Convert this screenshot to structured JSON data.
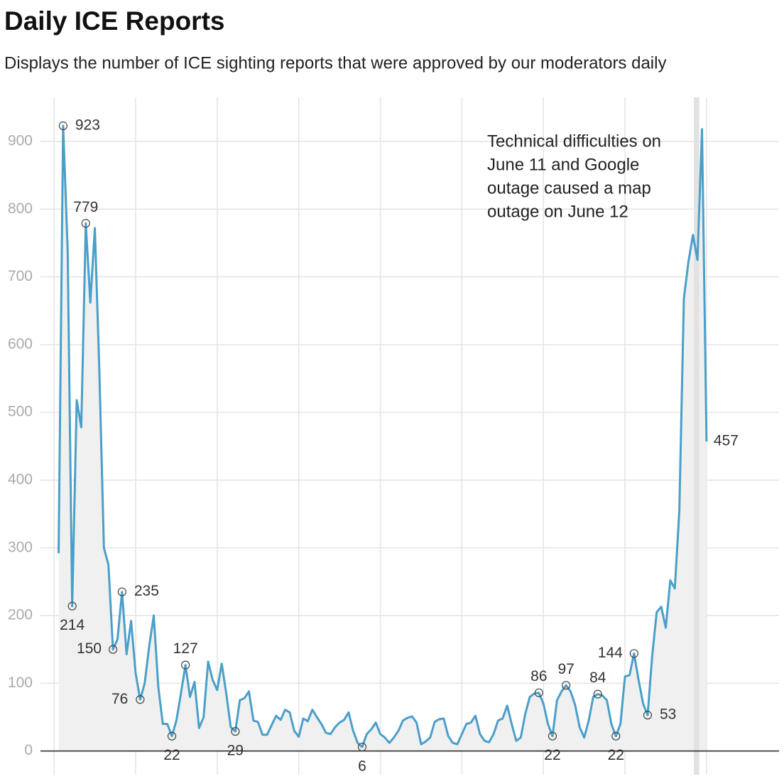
{
  "chart_data": {
    "type": "line",
    "title": "Daily ICE Reports",
    "subtitle": "Displays the number of ICE sighting reports that were approved by our moderators daily",
    "annotation": [
      "Technical difficulties on",
      "June 11 and Google",
      "outage caused a map",
      "outage on June 12"
    ],
    "series": [
      {
        "color": "#4a9fc9",
        "values": [
          292,
          923,
          740,
          214,
          518,
          478,
          779,
          662,
          772,
          560,
          300,
          275,
          150,
          165,
          235,
          143,
          192,
          115,
          76,
          100,
          155,
          200,
          95,
          40,
          40,
          22,
          45,
          85,
          127,
          80,
          102,
          34,
          50,
          132,
          105,
          90,
          129,
          85,
          35,
          29,
          75,
          78,
          88,
          45,
          43,
          24,
          24,
          38,
          52,
          46,
          61,
          57,
          30,
          21,
          48,
          44,
          61,
          50,
          40,
          27,
          25,
          35,
          42,
          46,
          57,
          30,
          12,
          6,
          25,
          32,
          42,
          25,
          20,
          12,
          20,
          30,
          45,
          49,
          51,
          42,
          10,
          14,
          20,
          43,
          47,
          48,
          22,
          12,
          10,
          25,
          40,
          42,
          52,
          25,
          15,
          13,
          25,
          45,
          48,
          67,
          40,
          15,
          20,
          55,
          80,
          85,
          86,
          70,
          40,
          22,
          75,
          88,
          97,
          88,
          68,
          35,
          20,
          45,
          80,
          84,
          82,
          75,
          40,
          22,
          40,
          110,
          112,
          144,
          105,
          70,
          53,
          140,
          205,
          213,
          182,
          252,
          240,
          355,
          668,
          722,
          762,
          725,
          918,
          457
        ]
      }
    ],
    "labeled_points": [
      1,
      3,
      6,
      12,
      14,
      18,
      25,
      28,
      39,
      67,
      106,
      109,
      112,
      119,
      123,
      127,
      130,
      143
    ],
    "highlight_x": [
      140.2,
      141.4
    ],
    "area_color": "#f0f0f0",
    "xlim": [
      -4,
      159
    ],
    "xticks": [
      -1,
      17,
      35,
      53,
      71,
      89,
      107,
      125,
      143
    ],
    "ylim": [
      -35,
      965
    ],
    "yticks": [
      0,
      100,
      200,
      300,
      400,
      500,
      600,
      700,
      800,
      900
    ],
    "grid": true
  }
}
